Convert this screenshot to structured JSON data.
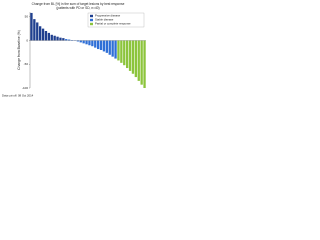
{
  "chart_data": {
    "type": "bar",
    "title": "Change from BL [%] in the sum of target lesions by best response",
    "subtitle": "(patients with PD or SD, n=40)",
    "y_label": "Change from Baseline (%)",
    "footnote": "Data cut-off: 08 Oct 2014",
    "ylim": [
      -100,
      60
    ],
    "yticks": [
      -100,
      -50,
      0,
      50
    ],
    "grid": false,
    "legend": "upper right",
    "series": [
      {
        "name": "Progressive disease",
        "color": "#1f3f8f",
        "values": [
          58,
          45,
          38,
          30,
          25,
          20,
          16,
          12,
          10,
          8,
          6,
          5,
          null,
          null,
          null,
          null,
          null,
          null,
          null,
          null,
          null,
          null,
          null,
          null,
          null,
          null,
          null,
          null,
          null,
          null,
          null,
          null,
          null,
          null,
          null,
          null,
          null,
          null,
          null,
          null
        ]
      },
      {
        "name": "Stable disease",
        "color": "#2f6fd6",
        "values": [
          null,
          null,
          null,
          null,
          null,
          null,
          null,
          null,
          null,
          null,
          null,
          null,
          3,
          2,
          1,
          0,
          -2,
          -4,
          -6,
          -8,
          -10,
          -12,
          -15,
          -18,
          -20,
          -23,
          -26,
          -30,
          -34,
          -38,
          null,
          null,
          null,
          null,
          null,
          null,
          null,
          null,
          null,
          null
        ]
      },
      {
        "name": "Partial or complete response",
        "color": "#8cc43c",
        "values": [
          null,
          null,
          null,
          null,
          null,
          null,
          null,
          null,
          null,
          null,
          null,
          null,
          null,
          null,
          null,
          null,
          null,
          null,
          null,
          null,
          null,
          null,
          null,
          null,
          null,
          null,
          null,
          null,
          null,
          null,
          -42,
          -47,
          -52,
          -58,
          -64,
          -70,
          -77,
          -85,
          -93,
          -100
        ]
      }
    ]
  }
}
